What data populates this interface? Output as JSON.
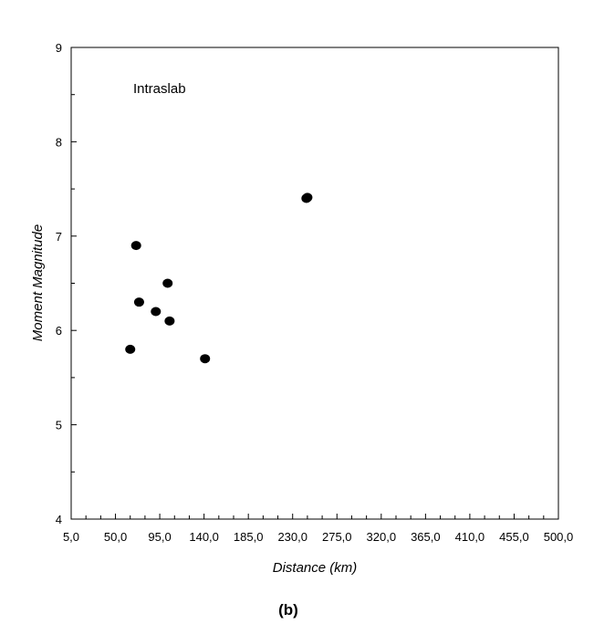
{
  "chart_data": {
    "type": "scatter",
    "xlabel": "Distance (km)",
    "ylabel": "Moment Magnitude",
    "annotation": "Intraslab",
    "panel_label": "(b)",
    "xlim": [
      5,
      500
    ],
    "ylim": [
      4,
      9
    ],
    "x_ticks": [
      5,
      50,
      95,
      140,
      185,
      230,
      275,
      320,
      365,
      410,
      455,
      500
    ],
    "x_tick_labels": [
      "5,0",
      "50,0",
      "95,0",
      "140,0",
      "185,0",
      "230,0",
      "275,0",
      "320,0",
      "365,0",
      "410,0",
      "455,0",
      "500,0"
    ],
    "y_ticks": [
      4,
      5,
      6,
      7,
      8,
      9
    ],
    "y_tick_labels": [
      "4",
      "5",
      "6",
      "7",
      "8",
      "9"
    ],
    "grid": false,
    "marker_color": "#000000",
    "points": [
      {
        "x": 65,
        "y": 5.8
      },
      {
        "x": 71,
        "y": 6.9
      },
      {
        "x": 74,
        "y": 6.3
      },
      {
        "x": 91,
        "y": 6.2
      },
      {
        "x": 103,
        "y": 6.5
      },
      {
        "x": 105,
        "y": 6.1
      },
      {
        "x": 141,
        "y": 5.7
      },
      {
        "x": 244,
        "y": 7.4
      },
      {
        "x": 245,
        "y": 7.41
      }
    ]
  }
}
